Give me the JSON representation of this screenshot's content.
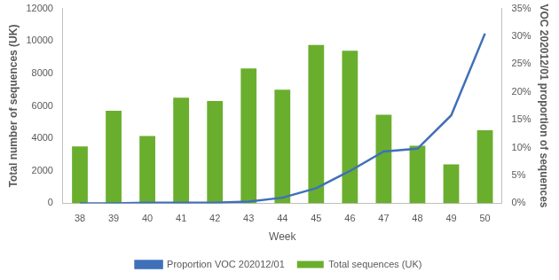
{
  "chart_data": {
    "type": "bar",
    "x_label": "Week",
    "y_label": "Total number of sequences (UK)",
    "y2_label": "VOC 202012/01 proportion of sequences",
    "categories": [
      "38",
      "39",
      "40",
      "41",
      "42",
      "43",
      "44",
      "45",
      "46",
      "47",
      "48",
      "49",
      "50"
    ],
    "series": [
      {
        "name": "Total sequences (UK)",
        "type": "bar",
        "color": "#6aae2e",
        "values": [
          3500,
          5700,
          4150,
          6500,
          6300,
          8300,
          7000,
          9750,
          9400,
          5450,
          3550,
          2400,
          4500
        ]
      },
      {
        "name": "Proportion VOC 202012/01",
        "type": "line",
        "axis": "y2",
        "color": "#3f70b8",
        "marker": "none",
        "line_style": "solid",
        "values": [
          0,
          0,
          0.1,
          0.1,
          0.1,
          0.3,
          1,
          2.7,
          5.8,
          9.3,
          9.8,
          15.8,
          30.5
        ]
      }
    ],
    "ylim": [
      0,
      12000
    ],
    "yticks": [
      0,
      2000,
      4000,
      6000,
      8000,
      10000,
      12000
    ],
    "y2lim": [
      0,
      35
    ],
    "y2ticks": [
      {
        "value": 0,
        "label": "0%"
      },
      {
        "value": 5,
        "label": "5%"
      },
      {
        "value": 10,
        "label": "10%"
      },
      {
        "value": 15,
        "label": "15%"
      },
      {
        "value": 20,
        "label": "20%"
      },
      {
        "value": 25,
        "label": "25%"
      },
      {
        "value": 30,
        "label": "30%"
      },
      {
        "value": 35,
        "label": "35%"
      }
    ],
    "grid": false,
    "legend": "bottom"
  }
}
